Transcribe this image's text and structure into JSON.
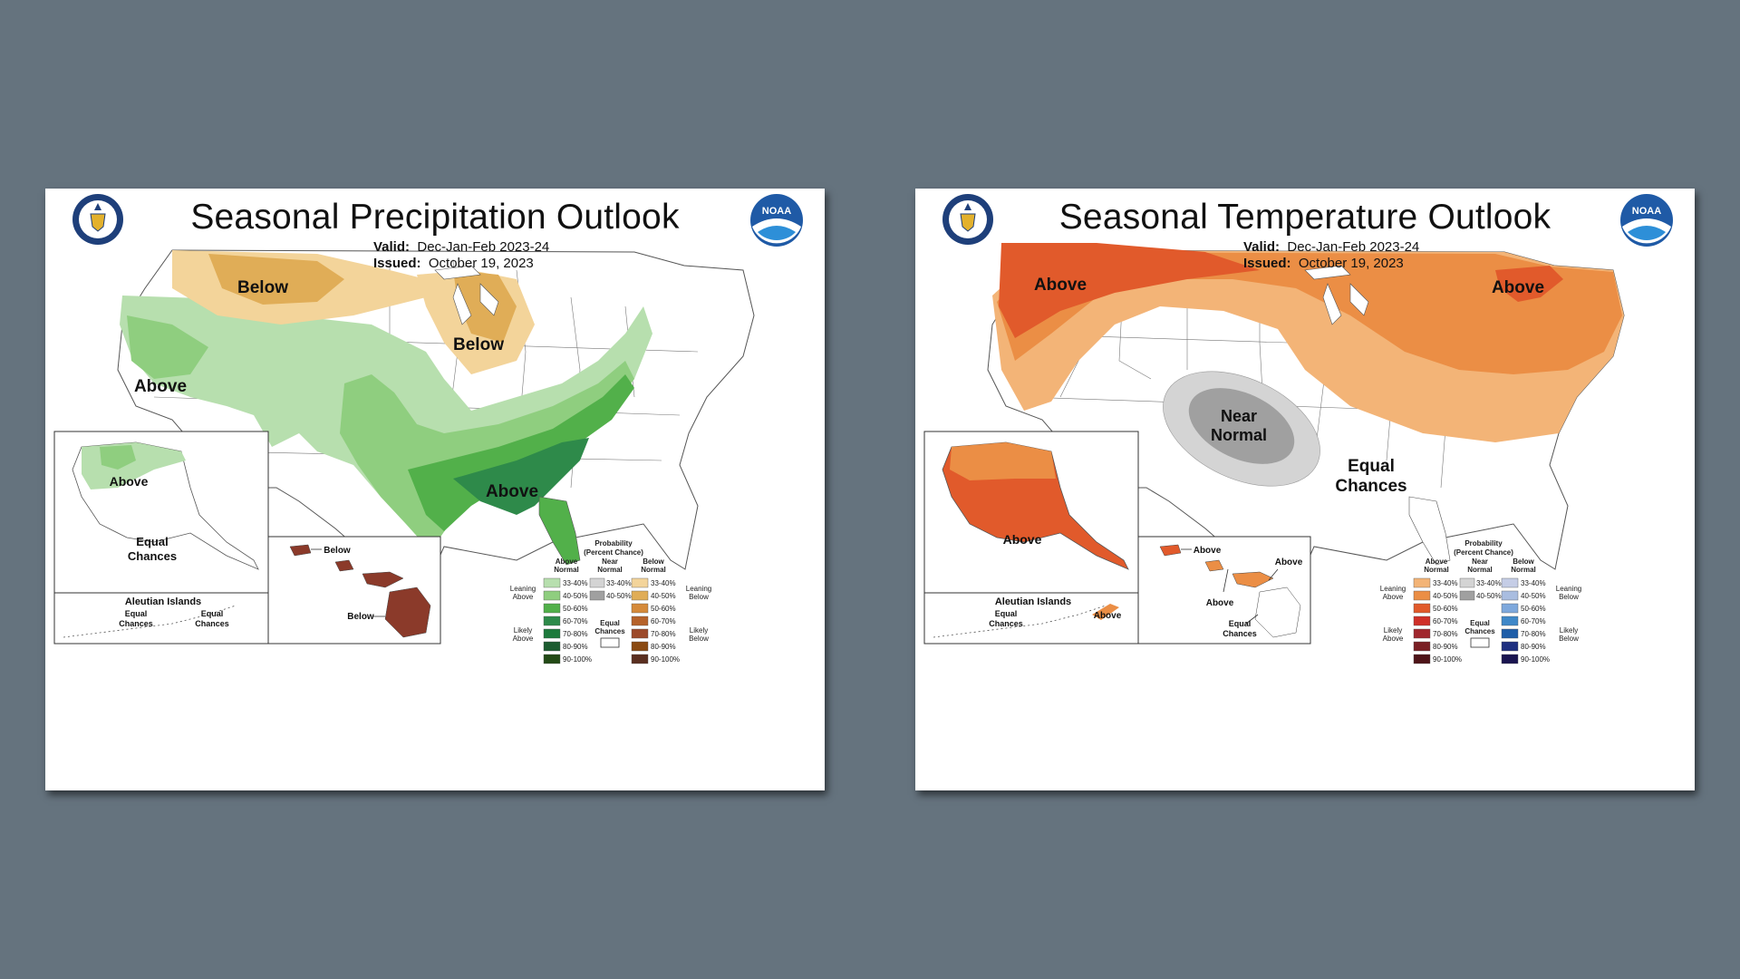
{
  "panels": [
    {
      "title": "Seasonal Precipitation Outlook",
      "valid_label": "Valid:",
      "valid_value": "Dec-Jan-Feb 2023-24",
      "issued_label": "Issued:",
      "issued_value": "October 19, 2023",
      "labels": {
        "below_north": "Below",
        "below_great_lakes": "Below",
        "above_west": "Above",
        "above_southeast": "Above",
        "alaska_above": "Above",
        "alaska_equal_1": "Equal",
        "alaska_equal_2": "Chances",
        "aleutian_title": "Aleutian Islands",
        "aleutian_equal_left_1": "Equal",
        "aleutian_equal_left_2": "Chances",
        "aleutian_equal_right_1": "Equal",
        "aleutian_equal_right_2": "Chances",
        "hawaii_below_1": "Below",
        "hawaii_below_2": "Below"
      },
      "legend": {
        "title_1": "Probability",
        "title_2": "(Percent Chance)",
        "col_above_1": "Above",
        "col_above_2": "Normal",
        "col_near_1": "Near",
        "col_near_2": "Normal",
        "col_below_1": "Below",
        "col_below_2": "Normal",
        "leaning_above_1": "Leaning",
        "leaning_above_2": "Above",
        "likely_above_1": "Likely",
        "likely_above_2": "Above",
        "leaning_below_1": "Leaning",
        "leaning_below_2": "Below",
        "likely_below_1": "Likely",
        "likely_below_2": "Below",
        "equal_1": "Equal",
        "equal_2": "Chances",
        "ranges": [
          "33-40%",
          "40-50%",
          "50-60%",
          "60-70%",
          "70-80%",
          "80-90%",
          "90-100%"
        ],
        "near_ranges": [
          "33-40%",
          "40-50%"
        ],
        "above_colors": [
          "#b7dfae",
          "#8fce7f",
          "#52b04a",
          "#2e8a4a",
          "#1d7a3c",
          "#1c5c30",
          "#234a16"
        ],
        "near_colors": [
          "#d4d4d4",
          "#a0a0a0"
        ],
        "below_colors": [
          "#f3d49a",
          "#e0ad57",
          "#d58a3a",
          "#b5622a",
          "#9c4a2a",
          "#8a4a12",
          "#5a2f20"
        ]
      }
    },
    {
      "title": "Seasonal Temperature Outlook",
      "valid_label": "Valid:",
      "valid_value": "Dec-Jan-Feb 2023-24",
      "issued_label": "Issued:",
      "issued_value": "October 19, 2023",
      "labels": {
        "above_northwest": "Above",
        "above_northeast": "Above",
        "near_normal_1": "Near",
        "near_normal_2": "Normal",
        "equal_chances_1": "Equal",
        "equal_chances_2": "Chances",
        "alaska_above": "Above",
        "aleutian_title": "Aleutian Islands",
        "aleutian_equal_1": "Equal",
        "aleutian_equal_2": "Chances",
        "aleutian_above": "Above",
        "hawaii_above_1": "Above",
        "hawaii_above_2": "Above",
        "hawaii_above_3": "Above",
        "hawaii_equal_1": "Equal",
        "hawaii_equal_2": "Chances"
      },
      "legend": {
        "title_1": "Probability",
        "title_2": "(Percent Chance)",
        "col_above_1": "Above",
        "col_above_2": "Normal",
        "col_near_1": "Near",
        "col_near_2": "Normal",
        "col_below_1": "Below",
        "col_below_2": "Normal",
        "leaning_above_1": "Leaning",
        "leaning_above_2": "Above",
        "likely_above_1": "Likely",
        "likely_above_2": "Above",
        "leaning_below_1": "Leaning",
        "leaning_below_2": "Below",
        "likely_below_1": "Likely",
        "likely_below_2": "Below",
        "equal_1": "Equal",
        "equal_2": "Chances",
        "ranges": [
          "33-40%",
          "40-50%",
          "50-60%",
          "60-70%",
          "70-80%",
          "80-90%",
          "90-100%"
        ],
        "near_ranges": [
          "33-40%",
          "40-50%"
        ],
        "above_colors": [
          "#f3b477",
          "#eb8e45",
          "#e15a2b",
          "#cf3029",
          "#a0272e",
          "#7a1f24",
          "#4e1418"
        ],
        "near_colors": [
          "#d4d4d4",
          "#a0a0a0"
        ],
        "below_colors": [
          "#c5cde6",
          "#a9bde0",
          "#7ea8dc",
          "#3f88c8",
          "#1f5ea8",
          "#1e2f80",
          "#1a1550"
        ]
      }
    }
  ]
}
